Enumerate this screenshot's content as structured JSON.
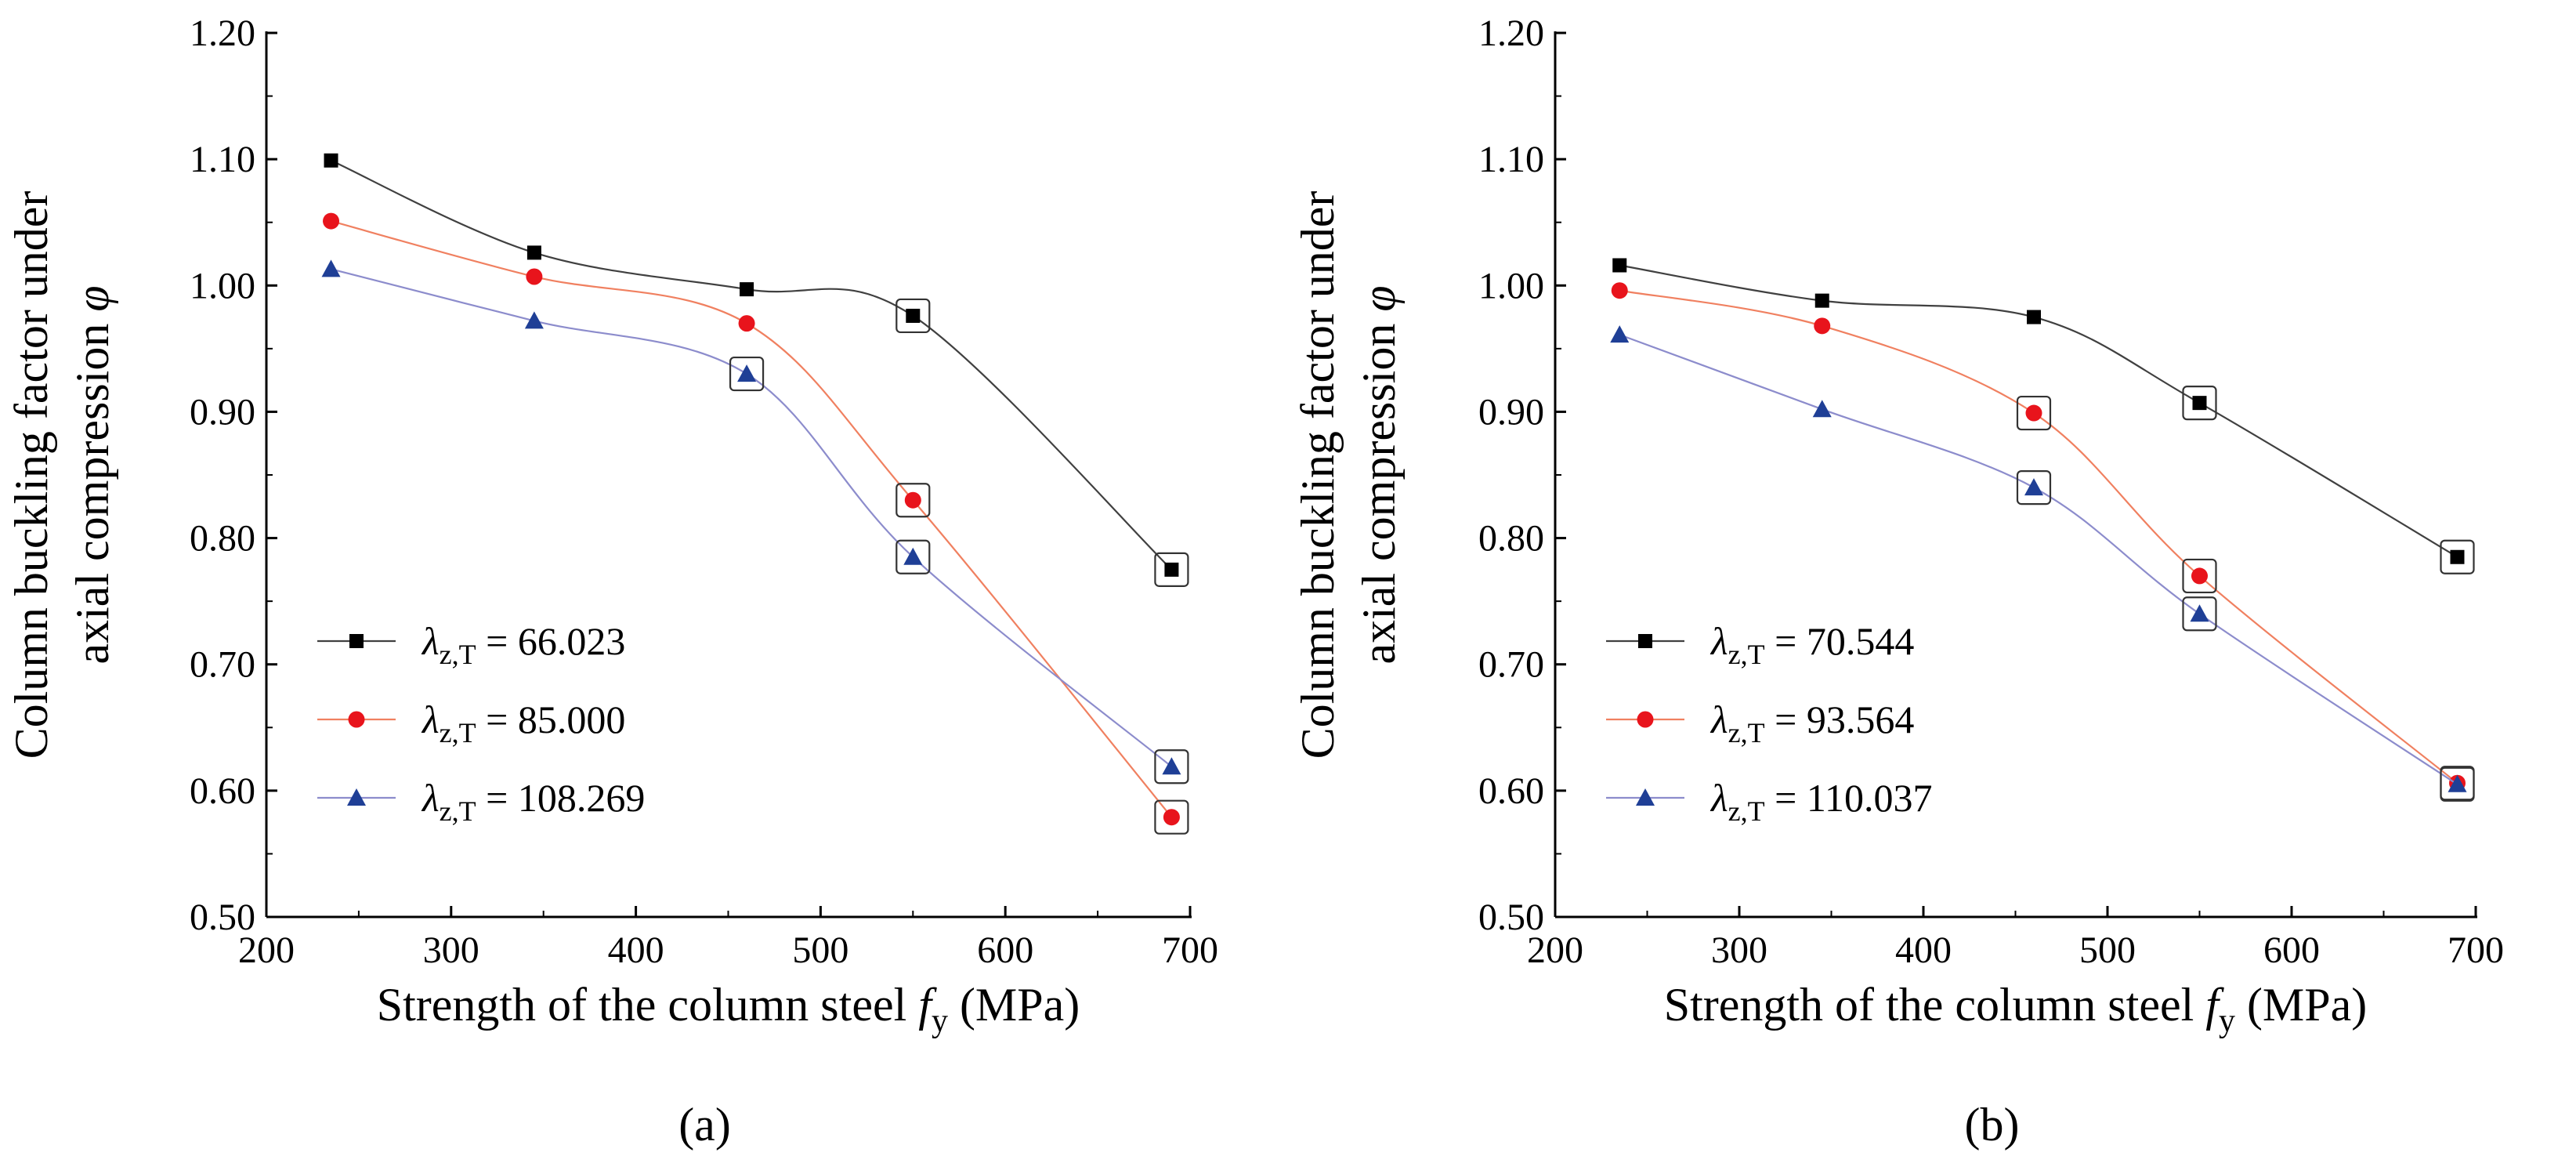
{
  "chart_data": [
    {
      "id": "a",
      "type": "line",
      "caption": "(a)",
      "xlabel": "Strength of the column steel",
      "xlabel_symbol": "f",
      "xlabel_subscript": "y",
      "xlabel_unit": "(MPa)",
      "ylabel_line1": "Column buckling factor under",
      "ylabel_line2": "axial compression",
      "ylabel_symbol": "φ",
      "xlim": [
        200,
        700
      ],
      "ylim": [
        0.5,
        1.2
      ],
      "xticks": [
        200,
        300,
        400,
        500,
        600,
        700
      ],
      "yticks": [
        "0.50",
        "0.60",
        "0.70",
        "0.80",
        "0.90",
        "1.00",
        "1.10",
        "1.20"
      ],
      "x": [
        235,
        345,
        460,
        550,
        690
      ],
      "legend_position": "lower-left",
      "legend_symbol": "λ",
      "legend_subscript": "z,T",
      "series": [
        {
          "name": "66.023",
          "color": "#404040",
          "marker": "square",
          "marker_color": "#000000",
          "values": [
            1.099,
            1.026,
            0.997,
            0.976,
            0.775
          ],
          "boxed": [
            false,
            false,
            false,
            true,
            true
          ]
        },
        {
          "name": "85.000",
          "color": "#f08060",
          "marker": "circle",
          "marker_color": "#e8141c",
          "values": [
            1.051,
            1.007,
            0.97,
            0.83,
            0.579
          ],
          "boxed": [
            false,
            false,
            false,
            true,
            true
          ]
        },
        {
          "name": "108.269",
          "color": "#8c8ccc",
          "marker": "triangle",
          "marker_color": "#1f3f96",
          "values": [
            1.013,
            0.972,
            0.93,
            0.785,
            0.619
          ],
          "boxed": [
            false,
            false,
            true,
            true,
            true
          ]
        }
      ]
    },
    {
      "id": "b",
      "type": "line",
      "caption": "(b)",
      "xlabel": "Strength of the column steel",
      "xlabel_symbol": "f",
      "xlabel_subscript": "y",
      "xlabel_unit": "(MPa)",
      "ylabel_line1": "Column buckling factor under",
      "ylabel_line2": "axial compression",
      "ylabel_symbol": "φ",
      "xlim": [
        200,
        700
      ],
      "ylim": [
        0.5,
        1.2
      ],
      "xticks": [
        200,
        300,
        400,
        500,
        600,
        700
      ],
      "yticks": [
        "0.50",
        "0.60",
        "0.70",
        "0.80",
        "0.90",
        "1.00",
        "1.10",
        "1.20"
      ],
      "x": [
        235,
        345,
        460,
        550,
        690
      ],
      "legend_position": "lower-left",
      "legend_symbol": "λ",
      "legend_subscript": "z,T",
      "series": [
        {
          "name": "70.544",
          "color": "#404040",
          "marker": "square",
          "marker_color": "#000000",
          "values": [
            1.016,
            0.988,
            0.975,
            0.907,
            0.785
          ],
          "boxed": [
            false,
            false,
            false,
            true,
            true
          ]
        },
        {
          "name": "93.564",
          "color": "#f08060",
          "marker": "circle",
          "marker_color": "#e8141c",
          "values": [
            0.996,
            0.968,
            0.899,
            0.77,
            0.606
          ],
          "boxed": [
            false,
            false,
            true,
            true,
            true
          ]
        },
        {
          "name": "110.037",
          "color": "#8c8ccc",
          "marker": "triangle",
          "marker_color": "#1f3f96",
          "values": [
            0.961,
            0.902,
            0.84,
            0.74,
            0.605
          ],
          "boxed": [
            false,
            false,
            true,
            true,
            true
          ]
        }
      ]
    }
  ]
}
